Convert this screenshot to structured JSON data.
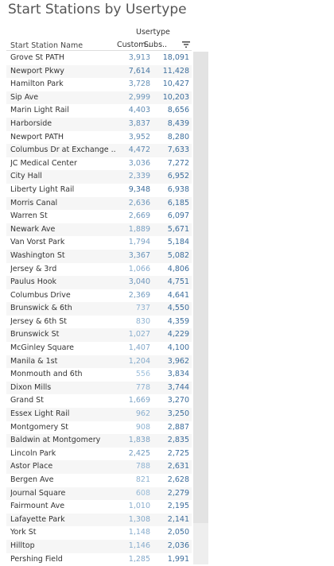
{
  "chart_data": {
    "type": "table",
    "title": "Start Stations by Usertype",
    "row_header": "Start Station Name",
    "column_group": "Usertype",
    "columns": [
      "Custom..",
      "Subs.."
    ],
    "sort_column": "Subs..",
    "sort_direction": "descending",
    "colors": {
      "customer_low": "#9fc0dc",
      "customer_high": "#3d6e9c",
      "subscriber": "#3d6e9c"
    },
    "rows": [
      {
        "name": "Grove St PATH",
        "customer": "3,913",
        "subscriber": "18,091"
      },
      {
        "name": "Newport Pkwy",
        "customer": "7,614",
        "subscriber": "11,428"
      },
      {
        "name": "Hamilton Park",
        "customer": "3,728",
        "subscriber": "10,427"
      },
      {
        "name": "Sip Ave",
        "customer": "2,999",
        "subscriber": "10,203"
      },
      {
        "name": "Marin Light Rail",
        "customer": "4,403",
        "subscriber": "8,656"
      },
      {
        "name": "Harborside",
        "customer": "3,837",
        "subscriber": "8,439"
      },
      {
        "name": "Newport PATH",
        "customer": "3,952",
        "subscriber": "8,280"
      },
      {
        "name": "Columbus Dr at Exchange ..",
        "customer": "4,472",
        "subscriber": "7,633"
      },
      {
        "name": "JC Medical Center",
        "customer": "3,036",
        "subscriber": "7,272"
      },
      {
        "name": "City Hall",
        "customer": "2,339",
        "subscriber": "6,952"
      },
      {
        "name": "Liberty Light Rail",
        "customer": "9,348",
        "subscriber": "6,938"
      },
      {
        "name": "Morris Canal",
        "customer": "2,636",
        "subscriber": "6,185"
      },
      {
        "name": "Warren St",
        "customer": "2,669",
        "subscriber": "6,097"
      },
      {
        "name": "Newark Ave",
        "customer": "1,889",
        "subscriber": "5,671"
      },
      {
        "name": "Van Vorst Park",
        "customer": "1,794",
        "subscriber": "5,184"
      },
      {
        "name": "Washington St",
        "customer": "3,367",
        "subscriber": "5,082"
      },
      {
        "name": "Jersey & 3rd",
        "customer": "1,066",
        "subscriber": "4,806"
      },
      {
        "name": "Paulus Hook",
        "customer": "3,040",
        "subscriber": "4,751"
      },
      {
        "name": "Columbus Drive",
        "customer": "2,369",
        "subscriber": "4,641"
      },
      {
        "name": "Brunswick & 6th",
        "customer": "737",
        "subscriber": "4,550"
      },
      {
        "name": "Jersey & 6th St",
        "customer": "830",
        "subscriber": "4,359"
      },
      {
        "name": "Brunswick St",
        "customer": "1,027",
        "subscriber": "4,229"
      },
      {
        "name": "McGinley Square",
        "customer": "1,407",
        "subscriber": "4,100"
      },
      {
        "name": "Manila & 1st",
        "customer": "1,204",
        "subscriber": "3,962"
      },
      {
        "name": "Monmouth and 6th",
        "customer": "556",
        "subscriber": "3,834"
      },
      {
        "name": "Dixon Mills",
        "customer": "778",
        "subscriber": "3,744"
      },
      {
        "name": "Grand St",
        "customer": "1,669",
        "subscriber": "3,270"
      },
      {
        "name": "Essex Light Rail",
        "customer": "962",
        "subscriber": "3,250"
      },
      {
        "name": "Montgomery St",
        "customer": "908",
        "subscriber": "2,887"
      },
      {
        "name": "Baldwin at Montgomery",
        "customer": "1,838",
        "subscriber": "2,835"
      },
      {
        "name": "Lincoln Park",
        "customer": "2,425",
        "subscriber": "2,725"
      },
      {
        "name": "Astor Place",
        "customer": "788",
        "subscriber": "2,631"
      },
      {
        "name": "Bergen Ave",
        "customer": "821",
        "subscriber": "2,628"
      },
      {
        "name": "Journal Square",
        "customer": "608",
        "subscriber": "2,279"
      },
      {
        "name": "Fairmount Ave",
        "customer": "1,010",
        "subscriber": "2,195"
      },
      {
        "name": "Lafayette Park",
        "customer": "1,308",
        "subscriber": "2,141"
      },
      {
        "name": "York St",
        "customer": "1,148",
        "subscriber": "2,050"
      },
      {
        "name": "Hilltop",
        "customer": "1,146",
        "subscriber": "2,036"
      },
      {
        "name": "Pershing Field",
        "customer": "1,285",
        "subscriber": "1,991"
      }
    ],
    "scroll_position": 0.92
  }
}
